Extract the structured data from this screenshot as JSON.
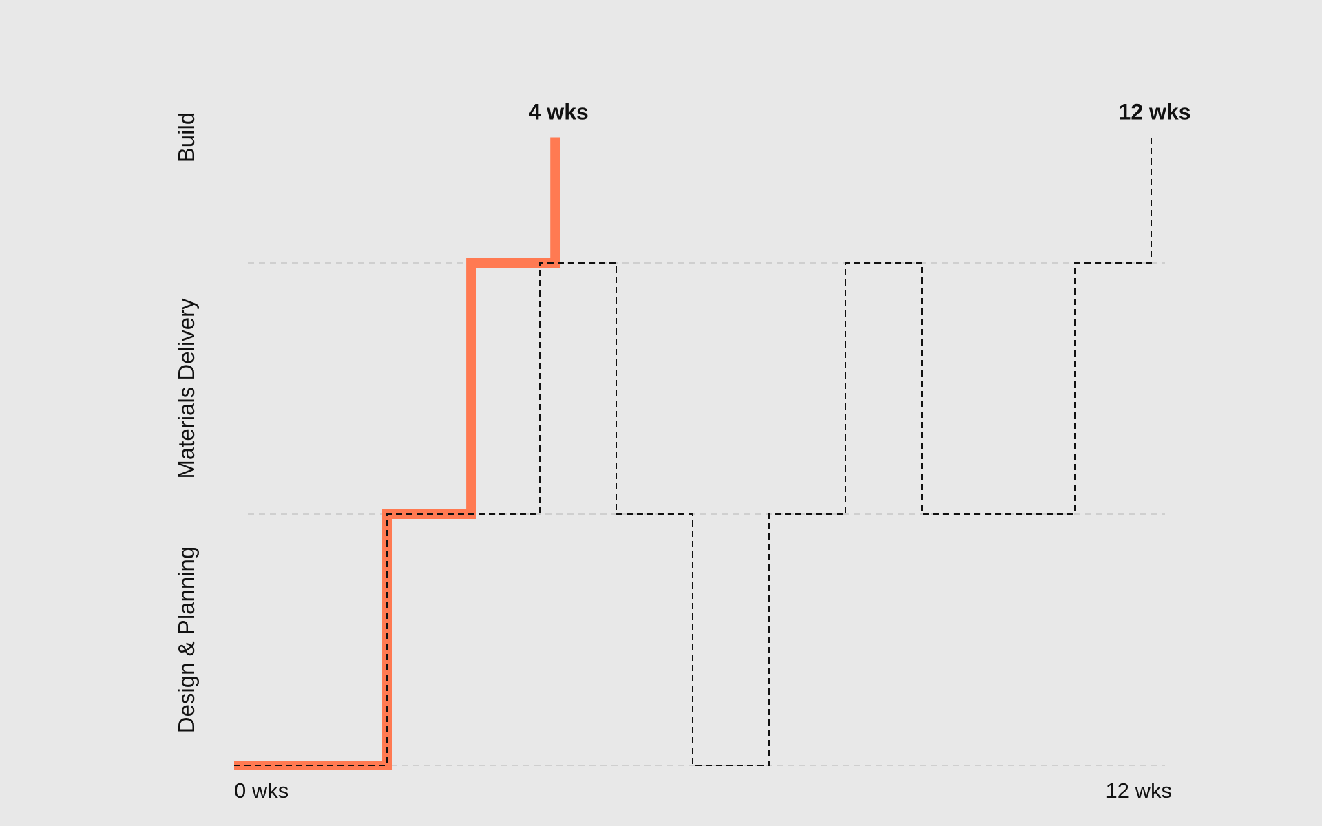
{
  "chart_data": {
    "type": "line",
    "title": "",
    "xlabel": "",
    "ylabel": "",
    "x_unit": "wks",
    "xlim": [
      0,
      12
    ],
    "x_tick_labels": [
      {
        "x": 0,
        "label": "0 wks"
      },
      {
        "x": 12,
        "label": "12 wks"
      }
    ],
    "lanes": [
      "Design & Planning",
      "Materials Delivery",
      "Build"
    ],
    "grid": "dashed horizontal lines at lane boundaries",
    "series": [
      {
        "style": "solid",
        "color": "#ff7a52",
        "steps": [
          {
            "x": 0,
            "y": 0
          },
          {
            "x": 2,
            "y": 0
          },
          {
            "x": 2,
            "y": 1
          },
          {
            "x": 3.1,
            "y": 1
          },
          {
            "x": 3.1,
            "y": 2
          },
          {
            "x": 4.2,
            "y": 2
          },
          {
            "x": 4.2,
            "y": 2.5
          }
        ],
        "end_label": "4 wks"
      },
      {
        "style": "dashed",
        "color": "#111111",
        "steps": [
          {
            "x": 0,
            "y": 0
          },
          {
            "x": 2,
            "y": 0
          },
          {
            "x": 2,
            "y": 1
          },
          {
            "x": 4,
            "y": 1
          },
          {
            "x": 4,
            "y": 2
          },
          {
            "x": 5,
            "y": 2
          },
          {
            "x": 5,
            "y": 1
          },
          {
            "x": 6,
            "y": 1
          },
          {
            "x": 6,
            "y": 0
          },
          {
            "x": 7,
            "y": 0
          },
          {
            "x": 7,
            "y": 1
          },
          {
            "x": 8,
            "y": 1
          },
          {
            "x": 8,
            "y": 2
          },
          {
            "x": 9,
            "y": 2
          },
          {
            "x": 9,
            "y": 1
          },
          {
            "x": 11,
            "y": 1
          },
          {
            "x": 11,
            "y": 2
          },
          {
            "x": 12,
            "y": 2
          },
          {
            "x": 12,
            "y": 2.5
          }
        ],
        "end_label": "12 wks"
      }
    ]
  }
}
